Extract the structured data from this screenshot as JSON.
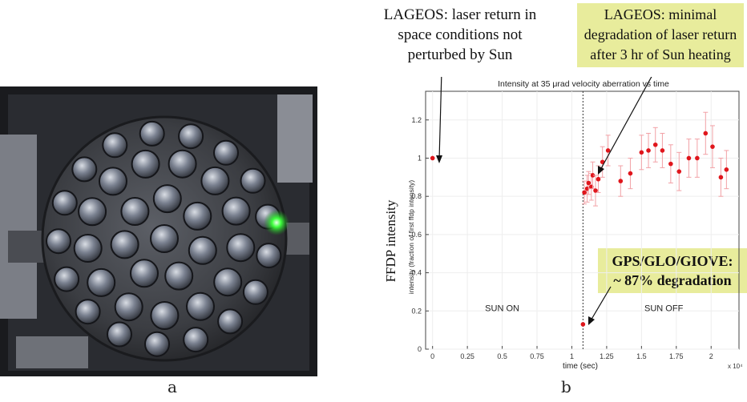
{
  "panels": {
    "a_label": "a",
    "b_label": "b"
  },
  "annotations": {
    "lageos_sun": [
      "LAGEOS: laser return in",
      "space conditions not",
      "perturbed by Sun"
    ],
    "lageos_heating": [
      "LAGEOS: minimal",
      "degradation of laser return",
      "after 3 hr of Sun heating"
    ],
    "gps_degradation": [
      "GPS/GLO/GIOVE:",
      "~ 87% degradation"
    ]
  },
  "colors": {
    "marker": "#e0161c",
    "error_bar": "#f2a1a6",
    "annotation_fill": "#e8ec9c",
    "green_led": "#3cff3c"
  },
  "chart_data": {
    "type": "scatter",
    "title": "Intensity at 35 μrad velocity aberration vs time",
    "xlabel": "time (sec)",
    "x_multiplier": "x 10⁴",
    "ylabel_outer": "FFDP intensity",
    "ylabel_inner": "intensity (fraction of first ffdp intensity)",
    "xlim": [
      -0.05,
      2.2
    ],
    "ylim": [
      0,
      1.35
    ],
    "xticks": [
      "0",
      "0.25",
      "0.5",
      "0.75",
      "1",
      "1.25",
      "1.5",
      "1.75",
      "2"
    ],
    "xtick_values": [
      0,
      0.25,
      0.5,
      0.75,
      1,
      1.25,
      1.5,
      1.75,
      2
    ],
    "yticks": [
      "0",
      "0.2",
      "0.4",
      "0.6",
      "0.8",
      "1",
      "1.2"
    ],
    "ytick_values": [
      0,
      0.2,
      0.4,
      0.6,
      0.8,
      1,
      1.2
    ],
    "sun_off_time": 1.08,
    "regions": [
      "SUN ON",
      "SUN OFF"
    ],
    "points": [
      {
        "x": 0.0,
        "y": 1.0,
        "err": 0.0
      },
      {
        "x": 1.08,
        "y": 0.13,
        "err": 0.0
      },
      {
        "x": 1.09,
        "y": 0.82,
        "err": 0.06
      },
      {
        "x": 1.11,
        "y": 0.84,
        "err": 0.07
      },
      {
        "x": 1.12,
        "y": 0.87,
        "err": 0.06
      },
      {
        "x": 1.14,
        "y": 0.85,
        "err": 0.07
      },
      {
        "x": 1.15,
        "y": 0.91,
        "err": 0.07
      },
      {
        "x": 1.17,
        "y": 0.83,
        "err": 0.08
      },
      {
        "x": 1.19,
        "y": 0.89,
        "err": 0.07
      },
      {
        "x": 1.22,
        "y": 0.98,
        "err": 0.08
      },
      {
        "x": 1.26,
        "y": 1.04,
        "err": 0.08
      },
      {
        "x": 1.35,
        "y": 0.88,
        "err": 0.08
      },
      {
        "x": 1.42,
        "y": 0.92,
        "err": 0.08
      },
      {
        "x": 1.5,
        "y": 1.03,
        "err": 0.09
      },
      {
        "x": 1.55,
        "y": 1.04,
        "err": 0.09
      },
      {
        "x": 1.6,
        "y": 1.07,
        "err": 0.09
      },
      {
        "x": 1.65,
        "y": 1.04,
        "err": 0.09
      },
      {
        "x": 1.71,
        "y": 0.97,
        "err": 0.1
      },
      {
        "x": 1.77,
        "y": 0.93,
        "err": 0.1
      },
      {
        "x": 1.84,
        "y": 1.0,
        "err": 0.1
      },
      {
        "x": 1.9,
        "y": 1.0,
        "err": 0.1
      },
      {
        "x": 1.96,
        "y": 1.13,
        "err": 0.11
      },
      {
        "x": 2.01,
        "y": 1.06,
        "err": 0.11
      },
      {
        "x": 2.07,
        "y": 0.9,
        "err": 0.1
      },
      {
        "x": 2.11,
        "y": 0.94,
        "err": 0.1
      }
    ]
  }
}
